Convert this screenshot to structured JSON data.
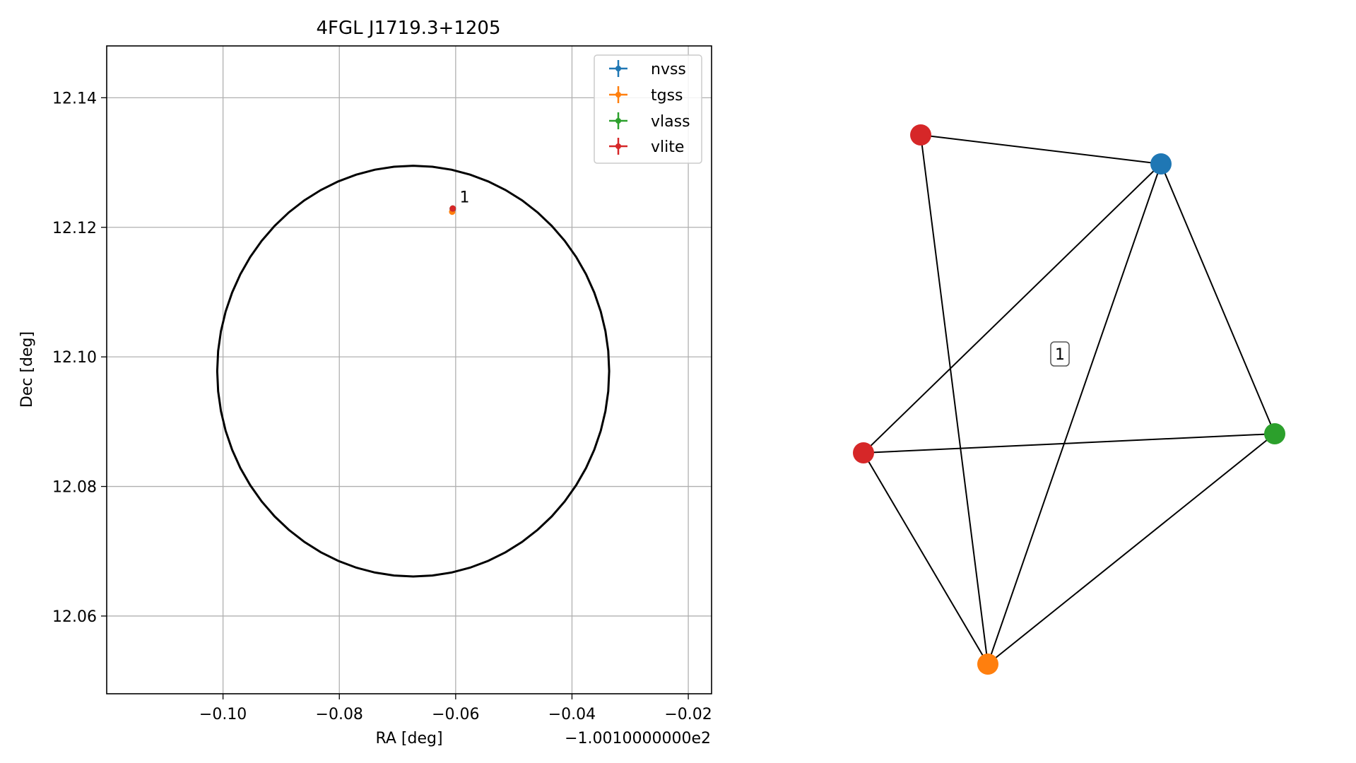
{
  "chart_data": [
    {
      "type": "scatter",
      "title": "4FGL J1719.3+1205",
      "xlabel": "RA [deg]",
      "ylabel": "Dec [deg]",
      "x_offset_label": "−1.0010000000e2",
      "xlim": [
        -0.12,
        -0.016
      ],
      "ylim": [
        12.048,
        12.148
      ],
      "xticks": [
        -0.1,
        -0.08,
        -0.06,
        -0.04,
        -0.02
      ],
      "xtick_labels": [
        "−0.10",
        "−0.08",
        "−0.06",
        "−0.04",
        "−0.02"
      ],
      "yticks": [
        12.06,
        12.08,
        12.1,
        12.12,
        12.14
      ],
      "ytick_labels": [
        "12.06",
        "12.08",
        "12.10",
        "12.12",
        "12.14"
      ],
      "grid": true,
      "legend_position": "top-right",
      "series": [
        {
          "name": "nvss",
          "color": "#1f77b4",
          "points": [
            {
              "x": -0.0605,
              "y": 12.1228
            }
          ]
        },
        {
          "name": "tgss",
          "color": "#ff7f0e",
          "points": [
            {
              "x": -0.0606,
              "y": 12.1224
            }
          ]
        },
        {
          "name": "vlass",
          "color": "#2ca02c",
          "points": [
            {
              "x": -0.0605,
              "y": 12.1229
            }
          ]
        },
        {
          "name": "vlite",
          "color": "#d62728",
          "points": [
            {
              "x": -0.0605,
              "y": 12.1229
            }
          ]
        }
      ],
      "ellipse": {
        "center_x": -0.0673,
        "center_y": 12.0978,
        "half_width_x": 0.0337,
        "half_height_y": 0.0317,
        "color": "#000000"
      },
      "annotations": [
        {
          "text": "1",
          "x": -0.0604,
          "y": 12.1232
        }
      ]
    },
    {
      "type": "network",
      "cluster_label": "1",
      "nodes": [
        {
          "id": "vlite_a",
          "survey": "vlite",
          "color": "#d62728"
        },
        {
          "id": "nvss",
          "survey": "nvss",
          "color": "#1f77b4"
        },
        {
          "id": "vlite_b",
          "survey": "vlite",
          "color": "#d62728"
        },
        {
          "id": "vlass",
          "survey": "vlass",
          "color": "#2ca02c"
        },
        {
          "id": "tgss",
          "survey": "tgss",
          "color": "#ff7f0e"
        }
      ],
      "edges": [
        [
          "vlite_a",
          "nvss"
        ],
        [
          "vlite_a",
          "tgss"
        ],
        [
          "nvss",
          "vlite_b"
        ],
        [
          "nvss",
          "tgss"
        ],
        [
          "nvss",
          "vlass"
        ],
        [
          "vlite_b",
          "vlass"
        ],
        [
          "vlite_b",
          "tgss"
        ],
        [
          "vlass",
          "tgss"
        ]
      ]
    }
  ]
}
